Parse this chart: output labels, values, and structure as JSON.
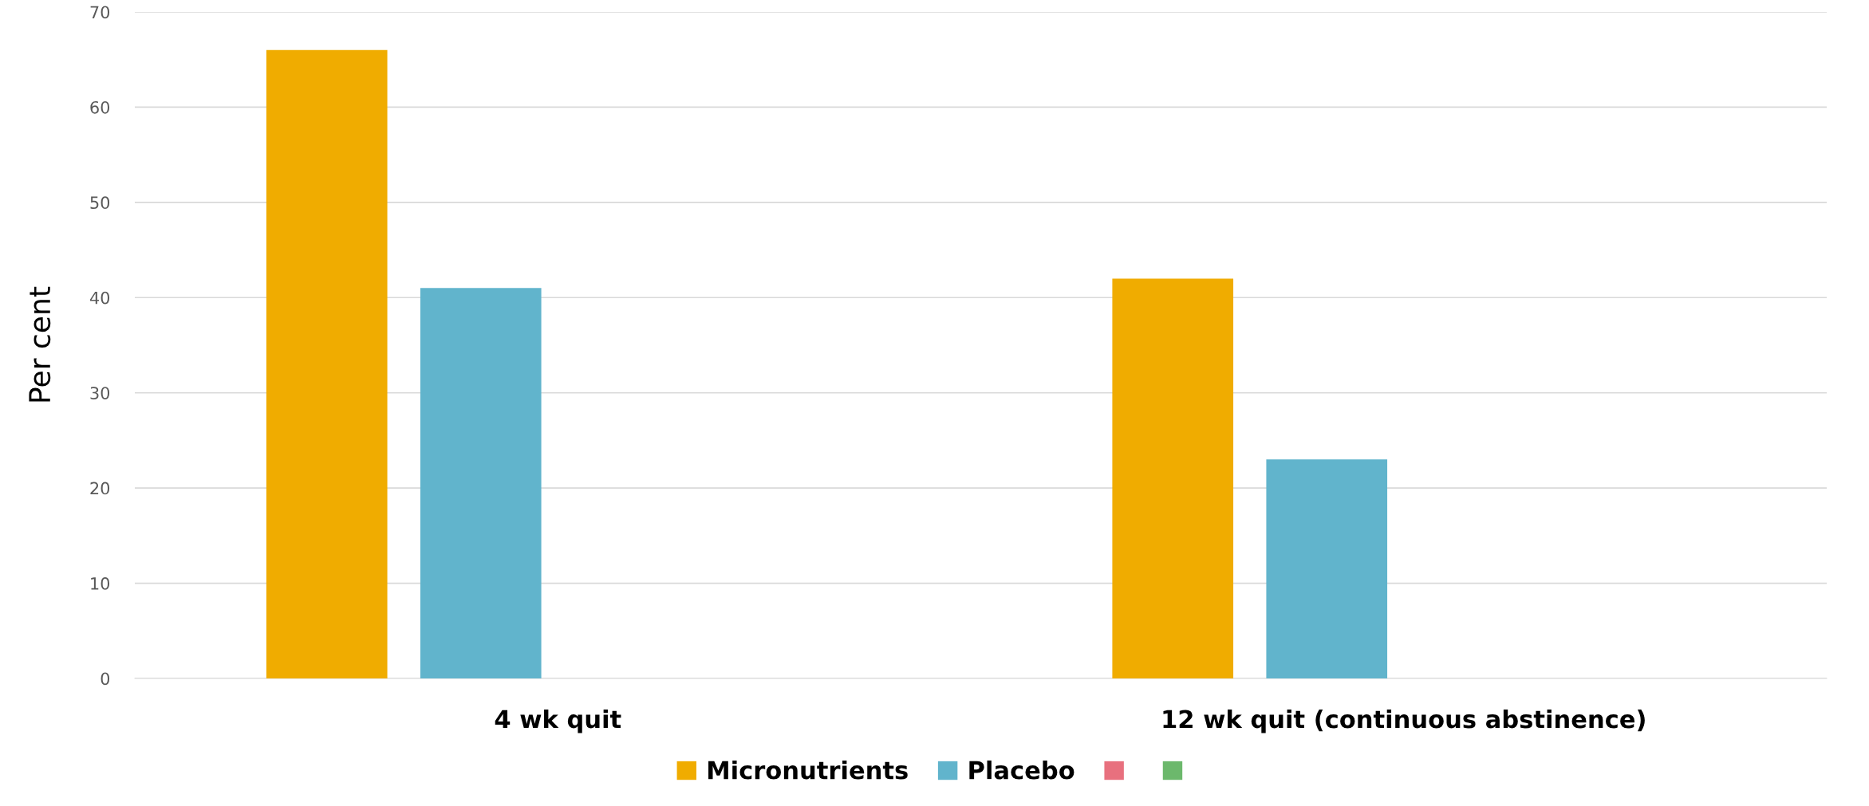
{
  "chart_data": {
    "type": "bar",
    "ylabel": "Per cent",
    "categories": [
      "4 wk quit",
      "12 wk quit (continuous abstinence)"
    ],
    "series": [
      {
        "name": "Micronutrients",
        "color": "#f0ac00",
        "values": [
          66,
          42
        ]
      },
      {
        "name": "Placebo",
        "color": "#61b4cc",
        "values": [
          41,
          23
        ]
      },
      {
        "color": "#e8707e",
        "values": [
          null,
          null
        ]
      },
      {
        "color": "#6cb86c",
        "values": [
          null,
          null
        ]
      }
    ],
    "ylim": [
      0,
      70
    ],
    "yticks": [
      0,
      10,
      20,
      30,
      40,
      50,
      60,
      70
    ],
    "grid": "y",
    "legend": "bottom"
  }
}
